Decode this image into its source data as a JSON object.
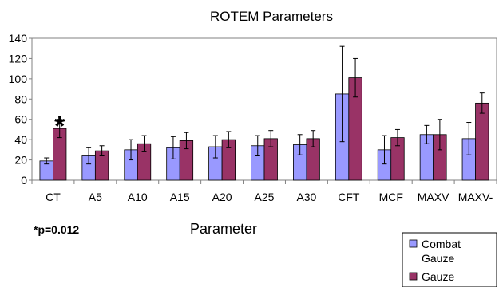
{
  "chart_data": {
    "type": "bar",
    "title": "ROTEM Parameters",
    "xlabel": "Parameter",
    "ylabel": "",
    "ylim": [
      0,
      140
    ],
    "yticks": [
      0,
      20,
      40,
      60,
      80,
      100,
      120,
      140
    ],
    "categories": [
      "CT",
      "A5",
      "A10",
      "A15",
      "A20",
      "A25",
      "A30",
      "CFT",
      "MCF",
      "MAXV",
      "MAXV-"
    ],
    "series": [
      {
        "name": "Combat Gauze",
        "color": "#9999ff",
        "values": [
          19,
          24,
          30,
          32,
          33,
          34,
          35,
          85,
          30,
          45,
          41
        ],
        "errors": [
          3,
          8,
          10,
          11,
          11,
          10,
          10,
          47,
          14,
          9,
          16
        ]
      },
      {
        "name": "Gauze",
        "color": "#993366",
        "values": [
          51,
          29,
          36,
          39,
          40,
          41,
          41,
          101,
          42,
          45,
          76
        ],
        "errors": [
          9,
          5,
          8,
          8,
          8,
          8,
          8,
          19,
          8,
          15,
          10
        ]
      }
    ],
    "annotations": [
      {
        "text": "*",
        "category": "CT"
      }
    ],
    "note": "*p=0.012",
    "grid": false,
    "legend_position": "bottom-right"
  }
}
